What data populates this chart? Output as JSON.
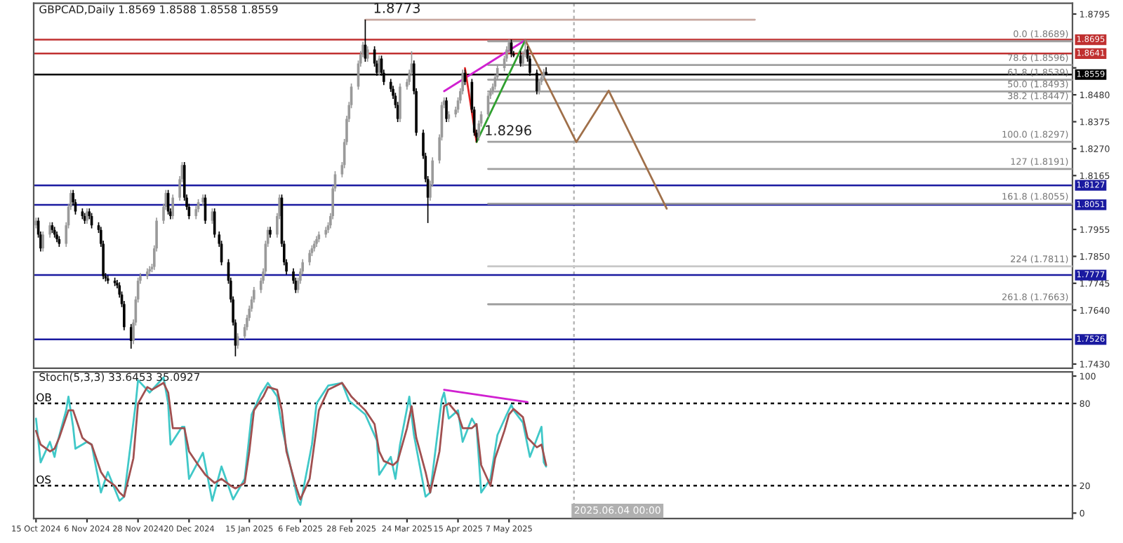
{
  "chart_data": [
    {
      "type": "candlestick",
      "title": "GBPCAD,Daily 1.8569 1.8588 1.8558 1.8559",
      "x": [
        "2024-10-15",
        "2024-10-16",
        "2024-10-17",
        "2024-10-18",
        "2024-10-21",
        "2024-10-22",
        "2024-10-23",
        "2024-10-24",
        "2024-10-25",
        "2024-10-28",
        "2024-10-29",
        "2024-10-30",
        "2024-10-31",
        "2024-11-01",
        "2024-11-04",
        "2024-11-05",
        "2024-11-06",
        "2024-11-07",
        "2024-11-08",
        "2024-11-11",
        "2024-11-12",
        "2024-11-13",
        "2024-11-14",
        "2024-11-15",
        "2024-11-18",
        "2024-11-19",
        "2024-11-20",
        "2024-11-21",
        "2024-11-22",
        "2024-11-25",
        "2024-11-26",
        "2024-11-27",
        "2024-11-28",
        "2024-11-29",
        "2024-12-02",
        "2024-12-03",
        "2024-12-04",
        "2024-12-05",
        "2024-12-06",
        "2024-12-09",
        "2024-12-10",
        "2024-12-11",
        "2024-12-12",
        "2024-12-13",
        "2024-12-16",
        "2024-12-17",
        "2024-12-18",
        "2024-12-19",
        "2024-12-20",
        "2024-12-23",
        "2024-12-24",
        "2024-12-26",
        "2024-12-27",
        "2024-12-30",
        "2024-12-31",
        "2025-01-02",
        "2025-01-03",
        "2025-01-06",
        "2025-01-07",
        "2025-01-08",
        "2025-01-09",
        "2025-01-10",
        "2025-01-13",
        "2025-01-14",
        "2025-01-15",
        "2025-01-16",
        "2025-01-17",
        "2025-01-20",
        "2025-01-21",
        "2025-01-22",
        "2025-01-23",
        "2025-01-24",
        "2025-01-27",
        "2025-01-28",
        "2025-01-29",
        "2025-01-30",
        "2025-01-31",
        "2025-02-03",
        "2025-02-04",
        "2025-02-05",
        "2025-02-06",
        "2025-02-07",
        "2025-02-10",
        "2025-02-11",
        "2025-02-12",
        "2025-02-13",
        "2025-02-14",
        "2025-02-17",
        "2025-02-18",
        "2025-02-19",
        "2025-02-20",
        "2025-02-21",
        "2025-02-24",
        "2025-02-25",
        "2025-02-26",
        "2025-02-27",
        "2025-02-28",
        "2025-03-03",
        "2025-03-04",
        "2025-03-05",
        "2025-03-06",
        "2025-03-07",
        "2025-03-10",
        "2025-03-11",
        "2025-03-12",
        "2025-03-13",
        "2025-03-14",
        "2025-03-17",
        "2025-03-18",
        "2025-03-19",
        "2025-03-20",
        "2025-03-21",
        "2025-03-24",
        "2025-03-25",
        "2025-03-26",
        "2025-03-27",
        "2025-03-28",
        "2025-03-31",
        "2025-04-01",
        "2025-04-02",
        "2025-04-03",
        "2025-04-04",
        "2025-04-07",
        "2025-04-08",
        "2025-04-09",
        "2025-04-10",
        "2025-04-11",
        "2025-04-14",
        "2025-04-15",
        "2025-04-16",
        "2025-04-17",
        "2025-04-18",
        "2025-04-21",
        "2025-04-22",
        "2025-04-23",
        "2025-04-24",
        "2025-04-25",
        "2025-04-28",
        "2025-04-29",
        "2025-04-30",
        "2025-05-01",
        "2025-05-02",
        "2025-05-05",
        "2025-05-06",
        "2025-05-07",
        "2025-05-08",
        "2025-05-09",
        "2025-05-12",
        "2025-05-13",
        "2025-05-14",
        "2025-05-15",
        "2025-05-16",
        "2025-05-19",
        "2025-05-20",
        "2025-05-21",
        "2025-05-22",
        "2025-05-23"
      ],
      "ohlc": [
        [
          1.7971,
          1.8001,
          1.7959,
          1.7989
        ],
        [
          1.7989,
          1.8001,
          1.7923,
          1.7935
        ],
        [
          1.7935,
          1.7947,
          1.7869,
          1.7881
        ],
        [
          1.7881,
          1.7947,
          1.7869,
          1.7935
        ],
        [
          1.7935,
          1.7983,
          1.7923,
          1.7971
        ],
        [
          1.7971,
          1.7983,
          1.7941,
          1.7953
        ],
        [
          1.7953,
          1.7965,
          1.7923,
          1.7935
        ],
        [
          1.7935,
          1.7947,
          1.7905,
          1.7917
        ],
        [
          1.7917,
          1.7929,
          1.7887,
          1.7899
        ],
        [
          1.7899,
          1.7983,
          1.7887,
          1.7971
        ],
        [
          1.7971,
          1.8055,
          1.7959,
          1.8043
        ],
        [
          1.8043,
          1.8109,
          1.8031,
          1.8097
        ],
        [
          1.8097,
          1.8109,
          1.8049,
          1.8061
        ],
        [
          1.8061,
          1.8073,
          1.8013,
          1.8025
        ],
        [
          1.8025,
          1.8037,
          1.7995,
          1.8007
        ],
        [
          1.8007,
          1.8019,
          1.7977,
          1.7989
        ],
        [
          1.7989,
          1.8037,
          1.7977,
          1.8025
        ],
        [
          1.8025,
          1.8037,
          1.7995,
          1.8007
        ],
        [
          1.8007,
          1.8019,
          1.7959,
          1.7971
        ],
        [
          1.7971,
          1.7983,
          1.7941,
          1.7953
        ],
        [
          1.7953,
          1.7965,
          1.7887,
          1.7899
        ],
        [
          1.7899,
          1.7911,
          1.7761,
          1.7773
        ],
        [
          1.7773,
          1.7785,
          1.7752,
          1.7764
        ],
        [
          1.7764,
          1.7776,
          1.7743,
          1.7755
        ],
        [
          1.7755,
          1.7767,
          1.7734,
          1.7746
        ],
        [
          1.7746,
          1.7758,
          1.7725,
          1.7737
        ],
        [
          1.7737,
          1.7749,
          1.7689,
          1.7701
        ],
        [
          1.7701,
          1.7713,
          1.7652,
          1.7664
        ],
        [
          1.7664,
          1.7676,
          1.7562,
          1.7574
        ],
        [
          1.7574,
          1.7586,
          1.749,
          1.752
        ],
        [
          1.752,
          1.7604,
          1.7508,
          1.7592
        ],
        [
          1.7592,
          1.7694,
          1.758,
          1.7682
        ],
        [
          1.7682,
          1.7767,
          1.767,
          1.7755
        ],
        [
          1.7755,
          1.7785,
          1.7743,
          1.7773
        ],
        [
          1.7773,
          1.7803,
          1.7761,
          1.7791
        ],
        [
          1.7791,
          1.7812,
          1.7779,
          1.78
        ],
        [
          1.78,
          1.7821,
          1.7788,
          1.7809
        ],
        [
          1.7809,
          1.7893,
          1.7797,
          1.7881
        ],
        [
          1.7881,
          1.8001,
          1.7869,
          1.7989
        ],
        [
          1.7989,
          1.8055,
          1.7977,
          1.8043
        ],
        [
          1.8043,
          1.8109,
          1.8031,
          1.8097
        ],
        [
          1.8097,
          1.8109,
          1.8013,
          1.8025
        ],
        [
          1.8025,
          1.8037,
          1.7995,
          1.8007
        ],
        [
          1.8007,
          1.8091,
          1.7995,
          1.8079
        ],
        [
          1.8079,
          1.8163,
          1.8067,
          1.8151
        ],
        [
          1.8151,
          1.8218,
          1.8139,
          1.8206
        ],
        [
          1.8206,
          1.8218,
          1.8067,
          1.8079
        ],
        [
          1.8079,
          1.8091,
          1.8031,
          1.8043
        ],
        [
          1.8043,
          1.8055,
          1.7995,
          1.8007
        ],
        [
          1.8007,
          1.8046,
          1.7995,
          1.8034
        ],
        [
          1.8034,
          1.8073,
          1.8022,
          1.8061
        ],
        [
          1.8061,
          1.8091,
          1.8049,
          1.8079
        ],
        [
          1.8079,
          1.8091,
          1.7977,
          1.7989
        ],
        [
          1.7989,
          1.8037,
          1.7977,
          1.8025
        ],
        [
          1.8025,
          1.8037,
          1.7923,
          1.7935
        ],
        [
          1.7935,
          1.7947,
          1.7887,
          1.7899
        ],
        [
          1.7899,
          1.7911,
          1.7815,
          1.7827
        ],
        [
          1.7827,
          1.7839,
          1.7743,
          1.7755
        ],
        [
          1.7755,
          1.7767,
          1.767,
          1.7682
        ],
        [
          1.7682,
          1.7694,
          1.758,
          1.7592
        ],
        [
          1.7592,
          1.7604,
          1.746,
          1.7502
        ],
        [
          1.7502,
          1.755,
          1.749,
          1.7538
        ],
        [
          1.7538,
          1.7586,
          1.7526,
          1.7574
        ],
        [
          1.7574,
          1.7622,
          1.7562,
          1.761
        ],
        [
          1.761,
          1.7658,
          1.7598,
          1.7646
        ],
        [
          1.7646,
          1.7694,
          1.7634,
          1.7682
        ],
        [
          1.7682,
          1.7731,
          1.767,
          1.7719
        ],
        [
          1.7719,
          1.7767,
          1.7707,
          1.7755
        ],
        [
          1.7755,
          1.7803,
          1.7743,
          1.7791
        ],
        [
          1.7791,
          1.7911,
          1.7779,
          1.7899
        ],
        [
          1.7899,
          1.7965,
          1.7887,
          1.7953
        ],
        [
          1.7953,
          1.7965,
          1.7923,
          1.7935
        ],
        [
          1.7935,
          1.8019,
          1.7923,
          1.8007
        ],
        [
          1.8007,
          1.8091,
          1.7995,
          1.8079
        ],
        [
          1.8079,
          1.8091,
          1.7887,
          1.7899
        ],
        [
          1.7899,
          1.7911,
          1.7815,
          1.7827
        ],
        [
          1.7827,
          1.7839,
          1.7779,
          1.7791
        ],
        [
          1.7791,
          1.7803,
          1.7743,
          1.7755
        ],
        [
          1.7755,
          1.7767,
          1.7707,
          1.7719
        ],
        [
          1.7719,
          1.7767,
          1.7707,
          1.7755
        ],
        [
          1.7755,
          1.7803,
          1.7743,
          1.7791
        ],
        [
          1.7791,
          1.7839,
          1.7779,
          1.7827
        ],
        [
          1.7827,
          1.7875,
          1.7815,
          1.7863
        ],
        [
          1.7863,
          1.7893,
          1.7851,
          1.7881
        ],
        [
          1.7881,
          1.7911,
          1.7869,
          1.7899
        ],
        [
          1.7899,
          1.7929,
          1.7887,
          1.7917
        ],
        [
          1.7917,
          1.7947,
          1.7905,
          1.7935
        ],
        [
          1.7935,
          1.7965,
          1.7923,
          1.7953
        ],
        [
          1.7953,
          1.7983,
          1.7941,
          1.7971
        ],
        [
          1.7971,
          1.8019,
          1.7959,
          1.8007
        ],
        [
          1.8007,
          1.8127,
          1.7995,
          1.8115
        ],
        [
          1.8115,
          1.8182,
          1.8103,
          1.817
        ],
        [
          1.817,
          1.8218,
          1.8158,
          1.8206
        ],
        [
          1.8206,
          1.8308,
          1.8194,
          1.8296
        ],
        [
          1.8296,
          1.8398,
          1.8284,
          1.8386
        ],
        [
          1.8386,
          1.8452,
          1.8374,
          1.844
        ],
        [
          1.844,
          1.8524,
          1.8428,
          1.8512
        ],
        [
          1.8512,
          1.8614,
          1.85,
          1.8602
        ],
        [
          1.8602,
          1.8651,
          1.859,
          1.8639
        ],
        [
          1.8639,
          1.8687,
          1.8627,
          1.8675
        ],
        [
          1.8675,
          1.8773,
          1.8609,
          1.8621
        ],
        [
          1.8621,
          1.8669,
          1.8609,
          1.8657
        ],
        [
          1.8657,
          1.8669,
          1.859,
          1.8602
        ],
        [
          1.8602,
          1.8614,
          1.8554,
          1.8566
        ],
        [
          1.8566,
          1.8633,
          1.8554,
          1.8621
        ],
        [
          1.8621,
          1.8633,
          1.8554,
          1.8566
        ],
        [
          1.8566,
          1.8578,
          1.8518,
          1.853
        ],
        [
          1.853,
          1.8542,
          1.8491,
          1.8503
        ],
        [
          1.8503,
          1.8515,
          1.8464,
          1.8476
        ],
        [
          1.8476,
          1.8488,
          1.8428,
          1.844
        ],
        [
          1.844,
          1.8452,
          1.8374,
          1.8386
        ],
        [
          1.8386,
          1.8524,
          1.8374,
          1.8512
        ],
        [
          1.8512,
          1.8542,
          1.85,
          1.853
        ],
        [
          1.853,
          1.8578,
          1.8518,
          1.8566
        ],
        [
          1.8566,
          1.865,
          1.8554,
          1.8602
        ],
        [
          1.8602,
          1.8614,
          1.8482,
          1.8494
        ],
        [
          1.8494,
          1.8506,
          1.832,
          1.8332
        ],
        [
          1.8332,
          1.8344,
          1.823,
          1.8242
        ],
        [
          1.8242,
          1.8254,
          1.8139,
          1.8151
        ],
        [
          1.8151,
          1.8163,
          1.798,
          1.8079
        ],
        [
          1.8079,
          1.8145,
          1.8067,
          1.8133
        ],
        [
          1.8133,
          1.8236,
          1.8121,
          1.8224
        ],
        [
          1.8224,
          1.8326,
          1.8212,
          1.8314
        ],
        [
          1.8314,
          1.8452,
          1.8302,
          1.844
        ],
        [
          1.844,
          1.847,
          1.8428,
          1.8458
        ],
        [
          1.8458,
          1.847,
          1.8374,
          1.8386
        ],
        [
          1.8386,
          1.8416,
          1.8374,
          1.8404
        ],
        [
          1.8404,
          1.8434,
          1.8392,
          1.8422
        ],
        [
          1.8422,
          1.847,
          1.841,
          1.8458
        ],
        [
          1.8458,
          1.8506,
          1.8446,
          1.8494
        ],
        [
          1.8494,
          1.8578,
          1.8482,
          1.8566
        ],
        [
          1.8566,
          1.8578,
          1.8518,
          1.853
        ],
        [
          1.853,
          1.8542,
          1.841,
          1.8422
        ],
        [
          1.8422,
          1.8434,
          1.832,
          1.8332
        ],
        [
          1.8332,
          1.8344,
          1.8296,
          1.8314
        ],
        [
          1.8314,
          1.838,
          1.8302,
          1.8368
        ],
        [
          1.8368,
          1.8416,
          1.8356,
          1.8404
        ],
        [
          1.8404,
          1.8488,
          1.8392,
          1.8476
        ],
        [
          1.8476,
          1.8506,
          1.8464,
          1.8494
        ],
        [
          1.8494,
          1.8524,
          1.8482,
          1.8512
        ],
        [
          1.8512,
          1.856,
          1.85,
          1.8548
        ],
        [
          1.8548,
          1.8596,
          1.8536,
          1.8584
        ],
        [
          1.8584,
          1.8633,
          1.8572,
          1.8621
        ],
        [
          1.8621,
          1.8669,
          1.8609,
          1.8657
        ],
        [
          1.8657,
          1.8696,
          1.8645,
          1.8684
        ],
        [
          1.8684,
          1.8696,
          1.8627,
          1.8639
        ],
        [
          1.8639,
          1.8651,
          1.8627,
          1.8633
        ],
        [
          1.8633,
          1.8651,
          1.859,
          1.8602
        ],
        [
          1.8602,
          1.8651,
          1.859,
          1.8639
        ],
        [
          1.8639,
          1.8693,
          1.8627,
          1.8657
        ],
        [
          1.8657,
          1.8669,
          1.8609,
          1.8621
        ],
        [
          1.8621,
          1.8633,
          1.8554,
          1.8566
        ],
        [
          1.8566,
          1.8578,
          1.8482,
          1.8494
        ],
        [
          1.8494,
          1.8542,
          1.8482,
          1.853
        ],
        [
          1.853,
          1.856,
          1.8518,
          1.8548
        ],
        [
          1.8548,
          1.8581,
          1.8536,
          1.8569
        ],
        [
          1.8569,
          1.8588,
          1.8558,
          1.8559
        ]
      ],
      "xlim": [
        "2024-10-14",
        "2026-01-05"
      ],
      "ylim": [
        1.7414,
        1.8837
      ],
      "yticks": [
        {
          "value": 1.8795,
          "label": "1.8795"
        },
        {
          "value": 1.8585,
          "label": null
        },
        {
          "value": 1.848,
          "label": "1.8480"
        },
        {
          "value": 1.8375,
          "label": "1.8375"
        },
        {
          "value": 1.827,
          "label": "1.8270"
        },
        {
          "value": 1.8165,
          "label": "1.8165"
        },
        {
          "value": 1.7955,
          "label": "1.7955"
        },
        {
          "value": 1.785,
          "label": "1.7850"
        },
        {
          "value": 1.7745,
          "label": "1.7745"
        },
        {
          "value": 1.764,
          "label": "1.7640"
        },
        {
          "value": 1.743,
          "label": "1.7430"
        }
      ],
      "tick_labels": "y",
      "series": [
        {
          "type": "line",
          "color": "#c8a8a0",
          "x": [
            "2025-03-06",
            "2025-08-21"
          ],
          "values": [
            1.8773,
            1.8773
          ]
        },
        {
          "type": "line",
          "color": "#a0a0a0",
          "x": [
            "2025-04-28",
            "2026-01-05"
          ],
          "values": [
            1.8689,
            1.8689
          ]
        },
        {
          "type": "line",
          "color": "#a0a0a0",
          "x": [
            "2025-04-28",
            "2026-01-05"
          ],
          "values": [
            1.8596,
            1.8596
          ]
        },
        {
          "type": "line",
          "color": "#a0a0a0",
          "x": [
            "2025-04-28",
            "2026-01-05"
          ],
          "values": [
            1.8539,
            1.8539
          ]
        },
        {
          "type": "line",
          "color": "#a0a0a0",
          "x": [
            "2025-04-28",
            "2026-01-05"
          ],
          "values": [
            1.8493,
            1.8493
          ]
        },
        {
          "type": "line",
          "color": "#a0a0a0",
          "x": [
            "2025-04-28",
            "2026-01-05"
          ],
          "values": [
            1.8447,
            1.8447
          ]
        },
        {
          "type": "line",
          "color": "#a0a0a0",
          "x": [
            "2025-04-28",
            "2026-01-05"
          ],
          "values": [
            1.8297,
            1.8297
          ]
        },
        {
          "type": "line",
          "color": "#a0a0a0",
          "x": [
            "2025-04-28",
            "2026-01-05"
          ],
          "values": [
            1.8191,
            1.8191
          ]
        },
        {
          "type": "line",
          "color": "#a0a0a0",
          "x": [
            "2025-04-28",
            "2026-01-05"
          ],
          "values": [
            1.8055,
            1.8055
          ]
        },
        {
          "type": "line",
          "color": "#c8c8c8",
          "x": [
            "2025-04-28",
            "2026-01-05"
          ],
          "values": [
            1.7811,
            1.7811
          ]
        },
        {
          "type": "line",
          "color": "#a0a0a0",
          "x": [
            "2025-04-28",
            "2026-01-05"
          ],
          "values": [
            1.7663,
            1.7663
          ]
        },
        {
          "type": "line",
          "color": "#d020d0",
          "x": [
            "2025-04-09",
            "2025-05-14"
          ],
          "values": [
            1.8494,
            1.8693
          ]
        },
        {
          "type": "line",
          "color": "#e02020",
          "x": [
            "2025-04-18",
            "2025-04-23"
          ],
          "values": [
            1.8584,
            1.8296
          ]
        },
        {
          "type": "line",
          "color": "#30a030",
          "x": [
            "2025-04-23",
            "2025-05-14"
          ],
          "values": [
            1.8296,
            1.8693
          ]
        },
        {
          "type": "line",
          "color": "#a0704a",
          "x": [
            "2025-05-14",
            "2025-06-05",
            "2025-06-19",
            "2025-07-14"
          ],
          "values": [
            1.8693,
            1.8296,
            1.8496,
            1.8036
          ]
        }
      ],
      "ref_lines": [
        {
          "axis": "y",
          "value": 1.8695,
          "label": "1.8695",
          "color": "#c03030"
        },
        {
          "axis": "y",
          "value": 1.8641,
          "label": "1.8641",
          "color": "#c03030"
        },
        {
          "axis": "y",
          "value": 1.8559,
          "label": "1.8559",
          "color": "#000000"
        },
        {
          "axis": "y",
          "value": 1.8127,
          "label": "1.8127",
          "color": "#1a1aa0"
        },
        {
          "axis": "y",
          "value": 1.8051,
          "label": "1.8051",
          "color": "#1a1aa0"
        },
        {
          "axis": "y",
          "value": 1.7777,
          "label": "1.7777",
          "color": "#1a1aa0"
        },
        {
          "axis": "y",
          "value": 1.7526,
          "label": "1.7526",
          "color": "#1a1aa0"
        },
        {
          "axis": "x",
          "value": "2025-06-04",
          "color": "#b0b0b0",
          "line_style": "dashed"
        }
      ],
      "annotations": [
        {
          "text": "1.8773",
          "x": "2025-03-06",
          "y": 1.8773
        },
        {
          "text": "1.8296",
          "x": "2025-04-23",
          "y": 1.8296
        },
        {
          "text": "0.0 (1.8689)",
          "x": "2026-01-05",
          "y": 1.8689
        },
        {
          "text": "78.6 (1.8596)",
          "x": "2026-01-05",
          "y": 1.8596
        },
        {
          "text": "61.8 (1.8539)",
          "x": "2026-01-05",
          "y": 1.8539
        },
        {
          "text": "50.0 (1.8493)",
          "x": "2026-01-05",
          "y": 1.8493
        },
        {
          "text": "38.2 (1.8447)",
          "x": "2026-01-05",
          "y": 1.8447
        },
        {
          "text": "100.0 (1.8297)",
          "x": "2026-01-05",
          "y": 1.8297
        },
        {
          "text": "127 (1.8191)",
          "x": "2026-01-05",
          "y": 1.8191
        },
        {
          "text": "161.8 (1.8055)",
          "x": "2026-01-05",
          "y": 1.8055
        },
        {
          "text": "224 (1.7811)",
          "x": "2026-01-05",
          "y": 1.7811
        },
        {
          "text": "261.8 (1.7663)",
          "x": "2026-01-05",
          "y": 1.7663
        }
      ]
    },
    {
      "type": "line",
      "title": "Stoch(5,3,3) 33.6453 35.0927",
      "xlim": [
        "2024-10-14",
        "2026-01-05"
      ],
      "ylim": [
        -4,
        103
      ],
      "yticks": [
        0,
        20,
        80,
        100
      ],
      "xticks": [
        {
          "value": "2024-10-15",
          "label": "15 Oct 2024"
        },
        {
          "value": "2024-11-06",
          "label": "6 Nov 2024"
        },
        {
          "value": "2024-11-28",
          "label": "28 Nov 2024"
        },
        {
          "value": "2024-12-20",
          "label": "20 Dec 2024"
        },
        {
          "value": "2025-01-15",
          "label": "15 Jan 2025"
        },
        {
          "value": "2025-02-06",
          "label": "6 Feb 2025"
        },
        {
          "value": "2025-02-28",
          "label": "28 Feb 2025"
        },
        {
          "value": "2025-03-24",
          "label": "24 Mar 2025"
        },
        {
          "value": "2025-04-15",
          "label": "15 Apr 2025"
        },
        {
          "value": "2025-05-07",
          "label": "7 May 2025"
        }
      ],
      "series": [
        {
          "color": "#40c8c8",
          "x": [
            "2024-10-15",
            "2024-10-17",
            "2024-10-21",
            "2024-10-23",
            "2024-10-24",
            "2024-10-28",
            "2024-10-29",
            "2024-10-31",
            "2024-11-01",
            "2024-11-06",
            "2024-11-08",
            "2024-11-12",
            "2024-11-15",
            "2024-11-20",
            "2024-11-22",
            "2024-11-27",
            "2024-11-28",
            "2024-12-03",
            "2024-12-09",
            "2024-12-11",
            "2024-12-12",
            "2024-12-17",
            "2024-12-18",
            "2024-12-20",
            "2024-12-26",
            "2024-12-30",
            "2025-01-03",
            "2025-01-08",
            "2025-01-13",
            "2025-01-16",
            "2025-01-20",
            "2025-01-23",
            "2025-01-27",
            "2025-01-29",
            "2025-02-05",
            "2025-02-06",
            "2025-02-11",
            "2025-02-13",
            "2025-02-18",
            "2025-02-24",
            "2025-02-27",
            "2025-03-06",
            "2025-03-11",
            "2025-03-12",
            "2025-03-17",
            "2025-03-19",
            "2025-03-21",
            "2025-03-25",
            "2025-03-27",
            "2025-04-01",
            "2025-04-03",
            "2025-04-08",
            "2025-04-09",
            "2025-04-11",
            "2025-04-15",
            "2025-04-17",
            "2025-04-21",
            "2025-04-23",
            "2025-04-25",
            "2025-04-29",
            "2025-05-02",
            "2025-05-06",
            "2025-05-08",
            "2025-05-09",
            "2025-05-13",
            "2025-05-16",
            "2025-05-21",
            "2025-05-22",
            "2025-05-23"
          ],
          "values": [
            69,
            37,
            52,
            41,
            50,
            75,
            85,
            63,
            47,
            52,
            50,
            15,
            30,
            9,
            12,
            80,
            97,
            88,
            99,
            80,
            50,
            63,
            63,
            25,
            44,
            9,
            34,
            10,
            25,
            72,
            87,
            95,
            85,
            63,
            9,
            6,
            50,
            80,
            93,
            95,
            82,
            72,
            53,
            28,
            41,
            25,
            50,
            85,
            57,
            12,
            15,
            83,
            88,
            69,
            75,
            52,
            69,
            63,
            15,
            25,
            57,
            72,
            79,
            75,
            66,
            41,
            63,
            37,
            34
          ]
        },
        {
          "color": "#a05050",
          "x": [
            "2024-10-15",
            "2024-10-17",
            "2024-10-21",
            "2024-10-23",
            "2024-10-25",
            "2024-10-29",
            "2024-10-31",
            "2024-11-04",
            "2024-11-06",
            "2024-11-08",
            "2024-11-12",
            "2024-11-14",
            "2024-11-18",
            "2024-11-20",
            "2024-11-22",
            "2024-11-26",
            "2024-11-28",
            "2024-12-02",
            "2024-12-04",
            "2024-12-09",
            "2024-12-11",
            "2024-12-13",
            "2024-12-18",
            "2024-12-20",
            "2024-12-24",
            "2024-12-27",
            "2024-12-31",
            "2025-01-03",
            "2025-01-07",
            "2025-01-09",
            "2025-01-13",
            "2025-01-15",
            "2025-01-17",
            "2025-01-21",
            "2025-01-23",
            "2025-01-27",
            "2025-01-29",
            "2025-01-31",
            "2025-02-04",
            "2025-02-06",
            "2025-02-10",
            "2025-02-12",
            "2025-02-14",
            "2025-02-18",
            "2025-02-24",
            "2025-02-28",
            "2025-03-06",
            "2025-03-10",
            "2025-03-12",
            "2025-03-14",
            "2025-03-18",
            "2025-03-20",
            "2025-03-24",
            "2025-03-26",
            "2025-03-28",
            "2025-04-01",
            "2025-04-03",
            "2025-04-07",
            "2025-04-09",
            "2025-04-11",
            "2025-04-15",
            "2025-04-17",
            "2025-04-21",
            "2025-04-23",
            "2025-04-25",
            "2025-04-29",
            "2025-05-01",
            "2025-05-05",
            "2025-05-07",
            "2025-05-09",
            "2025-05-13",
            "2025-05-15",
            "2025-05-19",
            "2025-05-21",
            "2025-05-23"
          ],
          "values": [
            60,
            50,
            45,
            47,
            55,
            75,
            75,
            55,
            52,
            50,
            30,
            25,
            20,
            15,
            12,
            40,
            80,
            92,
            90,
            95,
            88,
            62,
            62,
            45,
            35,
            28,
            22,
            25,
            20,
            18,
            22,
            45,
            75,
            85,
            92,
            90,
            75,
            45,
            20,
            10,
            25,
            50,
            75,
            90,
            95,
            85,
            75,
            65,
            45,
            38,
            35,
            38,
            62,
            78,
            55,
            30,
            15,
            45,
            78,
            80,
            72,
            62,
            62,
            65,
            35,
            20,
            40,
            60,
            72,
            76,
            70,
            55,
            48,
            50,
            35
          ]
        },
        {
          "color": "#d020d0",
          "x": [
            "2025-04-09",
            "2025-05-15"
          ],
          "values": [
            90,
            81
          ]
        }
      ],
      "ref_lines": [
        {
          "axis": "y",
          "value": 80,
          "label": "OB",
          "color": "#000000",
          "line_style": "dashed"
        },
        {
          "axis": "y",
          "value": 20,
          "label": "OS",
          "color": "#000000",
          "line_style": "dashed"
        },
        {
          "axis": "x",
          "value": "2025-06-04",
          "label": "2025.06.04 00:00",
          "color": "#b0b0b0",
          "line_style": "dashed"
        }
      ]
    }
  ]
}
